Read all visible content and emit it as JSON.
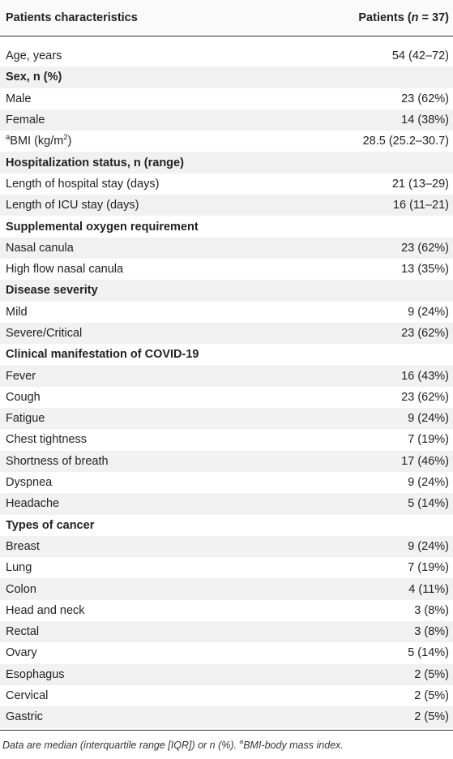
{
  "header": {
    "left": "Patients characteristics",
    "right_prefix": "Patients (",
    "right_n": "n",
    "right_suffix": " = 37)"
  },
  "rows": [
    {
      "label": "Age, years",
      "value": "54 (42–72)",
      "section": false
    },
    {
      "label": "Sex, n (%)",
      "value": "",
      "section": true
    },
    {
      "label": "Male",
      "value": "23 (62%)",
      "section": false
    },
    {
      "label": "Female",
      "value": "14 (38%)",
      "section": false
    },
    {
      "label_sup_prefix": "a",
      "label": "BMI (kg/m",
      "label_sup_suffix": "2",
      "label_tail": ")",
      "value": "28.5 (25.2–30.7)",
      "section": false,
      "bmi": true
    },
    {
      "label": "Hospitalization status, n (range)",
      "value": "",
      "section": true
    },
    {
      "label": "Length of hospital stay (days)",
      "value": "21 (13–29)",
      "section": false
    },
    {
      "label": "Length of ICU stay (days)",
      "value": "16 (11–21)",
      "section": false
    },
    {
      "label": "Supplemental oxygen requirement",
      "value": "",
      "section": true
    },
    {
      "label": "Nasal canula",
      "value": "23 (62%)",
      "section": false
    },
    {
      "label": "High flow nasal canula",
      "value": "13 (35%)",
      "section": false
    },
    {
      "label": "Disease severity",
      "value": "",
      "section": true
    },
    {
      "label": "Mild",
      "value": "9 (24%)",
      "section": false
    },
    {
      "label": "Severe/Critical",
      "value": "23 (62%)",
      "section": false
    },
    {
      "label": "Clinical manifestation of COVID-19",
      "value": "",
      "section": true
    },
    {
      "label": "Fever",
      "value": "16 (43%)",
      "section": false
    },
    {
      "label": "Cough",
      "value": "23 (62%)",
      "section": false
    },
    {
      "label": "Fatigue",
      "value": "9 (24%)",
      "section": false
    },
    {
      "label": "Chest tightness",
      "value": "7 (19%)",
      "section": false
    },
    {
      "label": "Shortness of breath",
      "value": "17 (46%)",
      "section": false
    },
    {
      "label": "Dyspnea",
      "value": "9 (24%)",
      "section": false
    },
    {
      "label": "Headache",
      "value": "5 (14%)",
      "section": false
    },
    {
      "label": "Types of cancer",
      "value": "",
      "section": true
    },
    {
      "label": "Breast",
      "value": "9 (24%)",
      "section": false
    },
    {
      "label": "Lung",
      "value": "7 (19%)",
      "section": false
    },
    {
      "label": "Colon",
      "value": "4 (11%)",
      "section": false
    },
    {
      "label": "Head and neck",
      "value": "3 (8%)",
      "section": false
    },
    {
      "label": "Rectal",
      "value": "3 (8%)",
      "section": false
    },
    {
      "label": "Ovary",
      "value": "5 (14%)",
      "section": false
    },
    {
      "label": "Esophagus",
      "value": "2 (5%)",
      "section": false
    },
    {
      "label": "Cervical",
      "value": "2 (5%)",
      "section": false
    },
    {
      "label": "Gastric",
      "value": "2 (5%)",
      "section": false
    }
  ],
  "footnote": {
    "main": "Data are median (interquartile range [IQR]) or n (%). ",
    "sup": "a",
    "tail": "BMI-body mass index."
  }
}
